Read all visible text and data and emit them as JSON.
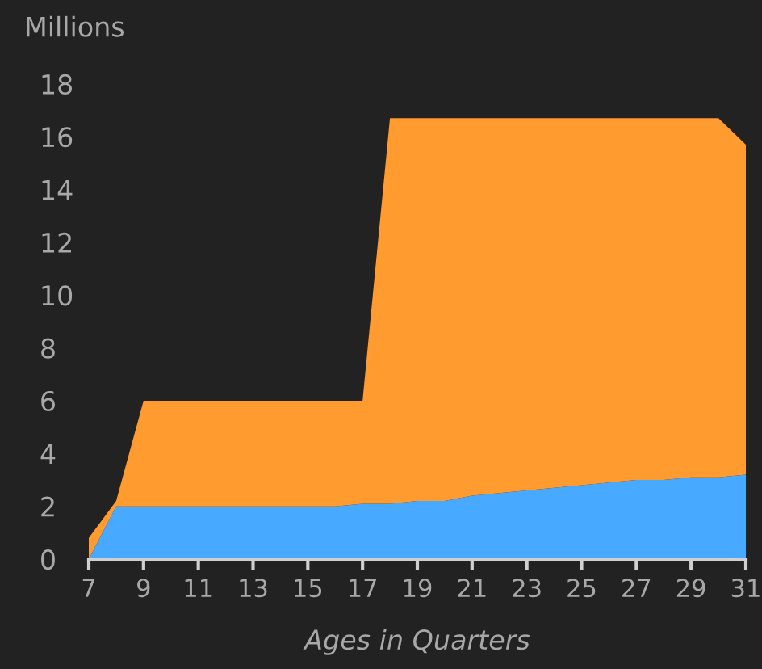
{
  "chart_data": {
    "type": "area",
    "stacked": true,
    "ylabel": "Millions",
    "xlabel": "Ages in Quarters",
    "x": [
      7,
      8,
      9,
      10,
      11,
      12,
      13,
      14,
      15,
      16,
      17,
      18,
      19,
      20,
      21,
      22,
      23,
      24,
      25,
      26,
      27,
      28,
      29,
      30,
      31
    ],
    "series": [
      {
        "color": "#47a9ff",
        "values": [
          0,
          2.0,
          2.0,
          2.0,
          2.0,
          2.0,
          2.0,
          2.0,
          2.0,
          2.0,
          2.1,
          2.1,
          2.2,
          2.2,
          2.4,
          2.5,
          2.6,
          2.7,
          2.8,
          2.9,
          3.0,
          3.0,
          3.1,
          3.1,
          3.2
        ]
      },
      {
        "color": "#ff9b2f",
        "values": [
          0.8,
          0.2,
          4.0,
          4.0,
          4.0,
          4.0,
          4.0,
          4.0,
          4.0,
          4.0,
          3.9,
          14.6,
          14.5,
          14.5,
          14.3,
          14.2,
          14.1,
          14.0,
          13.9,
          13.8,
          13.7,
          13.7,
          13.6,
          13.6,
          12.5
        ]
      }
    ],
    "xlim": [
      7,
      31
    ],
    "xticks": [
      7,
      9,
      11,
      13,
      15,
      17,
      19,
      21,
      23,
      25,
      27,
      29,
      31
    ],
    "ylim": [
      0,
      18
    ],
    "yticks": [
      0,
      2,
      4,
      6,
      8,
      10,
      12,
      14,
      16,
      18
    ],
    "grid": false,
    "legend": false
  }
}
